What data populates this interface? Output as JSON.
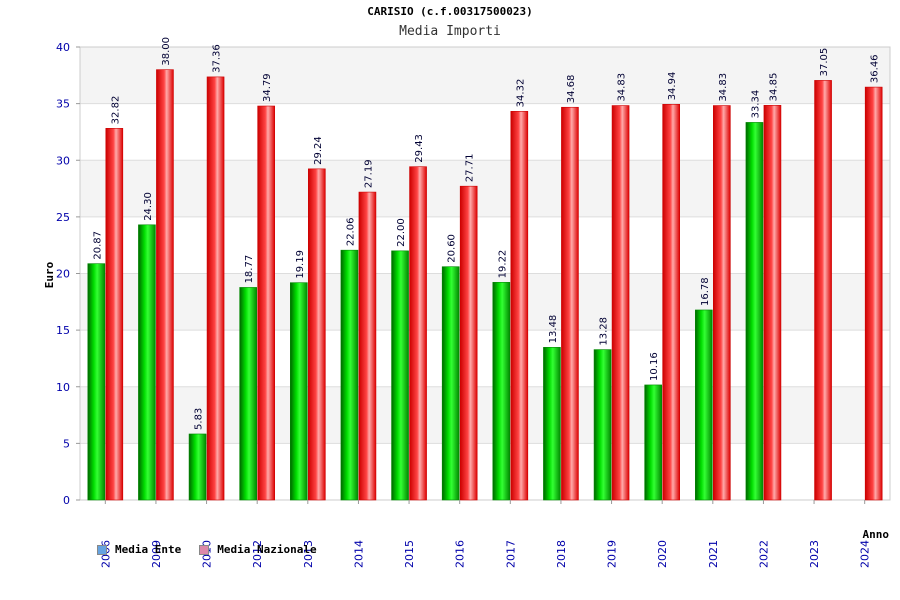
{
  "chart_data": {
    "type": "bar",
    "title": "CARISIO (c.f.00317500023)",
    "subtitle": "Media Importi",
    "ylabel": "Euro",
    "xlabel": "Anno",
    "ylim": [
      0,
      40
    ],
    "yticks": [
      0,
      5,
      10,
      15,
      20,
      25,
      30,
      35,
      40
    ],
    "grid": true,
    "legend_position": "bottom-left",
    "categories": [
      "2006",
      "2009",
      "2010",
      "2012",
      "2013",
      "2014",
      "2015",
      "2016",
      "2017",
      "2018",
      "2019",
      "2020",
      "2021",
      "2022",
      "2023",
      "2024"
    ],
    "series": [
      {
        "name": "Media Ente",
        "color": "#00cc00",
        "legend_color": "#66a3e0",
        "values": [
          20.87,
          24.3,
          5.83,
          18.77,
          19.19,
          22.06,
          22.0,
          20.6,
          19.22,
          13.48,
          13.28,
          10.16,
          16.78,
          33.34,
          null,
          null
        ],
        "labels": [
          "20.87",
          "24.30",
          "5.83",
          "18.77",
          "19.19",
          "22.06",
          "22.00",
          "20.60",
          "19.22",
          "13.48",
          "13.28",
          "10.16",
          "16.78",
          "33.34",
          "",
          ""
        ]
      },
      {
        "name": "Media Nazionale",
        "color": "#ee1111",
        "legend_color": "#dd88aa",
        "values": [
          32.82,
          38.0,
          37.36,
          34.79,
          29.24,
          27.19,
          29.43,
          27.71,
          34.32,
          34.68,
          34.83,
          34.94,
          34.83,
          34.85,
          37.05,
          36.46
        ],
        "labels": [
          "32.82",
          "38.00",
          "37.36",
          "34.79",
          "29.24",
          "27.19",
          "29.43",
          "27.71",
          "34.32",
          "34.68",
          "34.83",
          "34.94",
          "34.83",
          "34.85",
          "37.05",
          "36.46"
        ]
      }
    ]
  }
}
